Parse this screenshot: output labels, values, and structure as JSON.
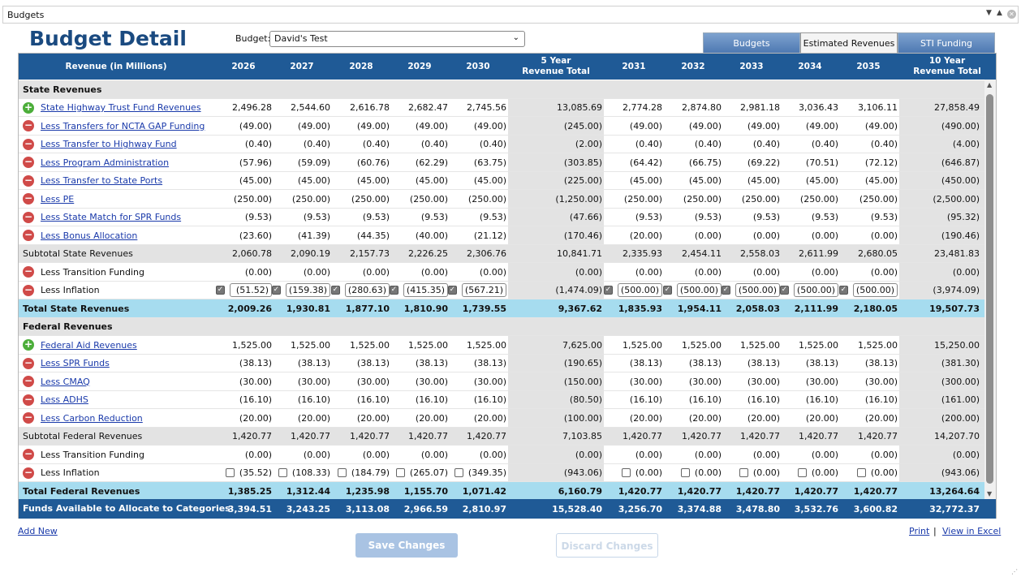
{
  "window": {
    "title": "Budgets"
  },
  "page": {
    "heading": "Budget Detail",
    "budget_label": "Budget:",
    "budget_value": "David's Test"
  },
  "tabs": [
    "Budgets",
    "Estimated Revenues",
    "STI Funding"
  ],
  "active_tab": 1,
  "header": {
    "first": "Revenue (in Millions)",
    "cols": [
      "2026",
      "2027",
      "2028",
      "2029",
      "2030",
      "5 Year\nRevenue Total",
      "2031",
      "2032",
      "2033",
      "2034",
      "2035",
      "10 Year\nRevenue Total"
    ]
  },
  "rows": [
    {
      "type": "section",
      "label": "State Revenues"
    },
    {
      "type": "item",
      "icon": "plus",
      "link": true,
      "label": "State Highway Trust Fund Revenues",
      "vals": [
        "2,496.28",
        "2,544.60",
        "2,616.78",
        "2,682.47",
        "2,745.56",
        "13,085.69",
        "2,774.28",
        "2,874.80",
        "2,981.18",
        "3,036.43",
        "3,106.11",
        "27,858.49"
      ]
    },
    {
      "type": "item",
      "icon": "minus",
      "link": true,
      "label": "Less Transfers for NCTA GAP Funding",
      "vals": [
        "(49.00)",
        "(49.00)",
        "(49.00)",
        "(49.00)",
        "(49.00)",
        "(245.00)",
        "(49.00)",
        "(49.00)",
        "(49.00)",
        "(49.00)",
        "(49.00)",
        "(490.00)"
      ]
    },
    {
      "type": "item",
      "icon": "minus",
      "link": true,
      "label": "Less Transfer to Highway Fund",
      "vals": [
        "(0.40)",
        "(0.40)",
        "(0.40)",
        "(0.40)",
        "(0.40)",
        "(2.00)",
        "(0.40)",
        "(0.40)",
        "(0.40)",
        "(0.40)",
        "(0.40)",
        "(4.00)"
      ]
    },
    {
      "type": "item",
      "icon": "minus",
      "link": true,
      "label": "Less Program Administration",
      "vals": [
        "(57.96)",
        "(59.09)",
        "(60.76)",
        "(62.29)",
        "(63.75)",
        "(303.85)",
        "(64.42)",
        "(66.75)",
        "(69.22)",
        "(70.51)",
        "(72.12)",
        "(646.87)"
      ]
    },
    {
      "type": "item",
      "icon": "minus",
      "link": true,
      "label": "Less Transfer to State Ports",
      "vals": [
        "(45.00)",
        "(45.00)",
        "(45.00)",
        "(45.00)",
        "(45.00)",
        "(225.00)",
        "(45.00)",
        "(45.00)",
        "(45.00)",
        "(45.00)",
        "(45.00)",
        "(450.00)"
      ]
    },
    {
      "type": "item",
      "icon": "minus",
      "link": true,
      "label": "Less PE",
      "vals": [
        "(250.00)",
        "(250.00)",
        "(250.00)",
        "(250.00)",
        "(250.00)",
        "(1,250.00)",
        "(250.00)",
        "(250.00)",
        "(250.00)",
        "(250.00)",
        "(250.00)",
        "(2,500.00)"
      ]
    },
    {
      "type": "item",
      "icon": "minus",
      "link": true,
      "label": "Less State Match for SPR Funds",
      "vals": [
        "(9.53)",
        "(9.53)",
        "(9.53)",
        "(9.53)",
        "(9.53)",
        "(47.66)",
        "(9.53)",
        "(9.53)",
        "(9.53)",
        "(9.53)",
        "(9.53)",
        "(95.32)"
      ]
    },
    {
      "type": "item",
      "icon": "minus",
      "link": true,
      "label": "Less Bonus Allocation",
      "vals": [
        "(23.60)",
        "(41.39)",
        "(44.35)",
        "(40.00)",
        "(21.12)",
        "(170.46)",
        "(20.00)",
        "(0.00)",
        "(0.00)",
        "(0.00)",
        "(0.00)",
        "(190.46)"
      ]
    },
    {
      "type": "subtotal",
      "label": "Subtotal State Revenues",
      "vals": [
        "2,060.78",
        "2,090.19",
        "2,157.73",
        "2,226.25",
        "2,306.76",
        "10,841.71",
        "2,335.93",
        "2,454.11",
        "2,558.03",
        "2,611.99",
        "2,680.05",
        "23,481.83"
      ]
    },
    {
      "type": "item",
      "icon": "minus",
      "link": false,
      "label": "Less Transition Funding",
      "vals": [
        "(0.00)",
        "(0.00)",
        "(0.00)",
        "(0.00)",
        "(0.00)",
        "(0.00)",
        "(0.00)",
        "(0.00)",
        "(0.00)",
        "(0.00)",
        "(0.00)",
        "(0.00)"
      ]
    },
    {
      "type": "inflation",
      "icon": "minus",
      "link": false,
      "checked": true,
      "label": "Less Inflation",
      "vals": [
        "(51.52)",
        "(159.38)",
        "(280.63)",
        "(415.35)",
        "(567.21)",
        "(1,474.09)",
        "(500.00)",
        "(500.00)",
        "(500.00)",
        "(500.00)",
        "(500.00)",
        "(3,974.09)"
      ]
    },
    {
      "type": "total",
      "label": "Total State Revenues",
      "vals": [
        "2,009.26",
        "1,930.81",
        "1,877.10",
        "1,810.90",
        "1,739.55",
        "9,367.62",
        "1,835.93",
        "1,954.11",
        "2,058.03",
        "2,111.99",
        "2,180.05",
        "19,507.73"
      ]
    },
    {
      "type": "section",
      "label": "Federal Revenues"
    },
    {
      "type": "item",
      "icon": "plus",
      "link": true,
      "label": "Federal Aid Revenues",
      "vals": [
        "1,525.00",
        "1,525.00",
        "1,525.00",
        "1,525.00",
        "1,525.00",
        "7,625.00",
        "1,525.00",
        "1,525.00",
        "1,525.00",
        "1,525.00",
        "1,525.00",
        "15,250.00"
      ]
    },
    {
      "type": "item",
      "icon": "minus",
      "link": true,
      "label": "Less SPR Funds",
      "vals": [
        "(38.13)",
        "(38.13)",
        "(38.13)",
        "(38.13)",
        "(38.13)",
        "(190.65)",
        "(38.13)",
        "(38.13)",
        "(38.13)",
        "(38.13)",
        "(38.13)",
        "(381.30)"
      ]
    },
    {
      "type": "item",
      "icon": "minus",
      "link": true,
      "label": "Less CMAQ",
      "vals": [
        "(30.00)",
        "(30.00)",
        "(30.00)",
        "(30.00)",
        "(30.00)",
        "(150.00)",
        "(30.00)",
        "(30.00)",
        "(30.00)",
        "(30.00)",
        "(30.00)",
        "(300.00)"
      ]
    },
    {
      "type": "item",
      "icon": "minus",
      "link": true,
      "label": "Less ADHS",
      "vals": [
        "(16.10)",
        "(16.10)",
        "(16.10)",
        "(16.10)",
        "(16.10)",
        "(80.50)",
        "(16.10)",
        "(16.10)",
        "(16.10)",
        "(16.10)",
        "(16.10)",
        "(161.00)"
      ]
    },
    {
      "type": "item",
      "icon": "minus",
      "link": true,
      "label": "Less Carbon Reduction",
      "vals": [
        "(20.00)",
        "(20.00)",
        "(20.00)",
        "(20.00)",
        "(20.00)",
        "(100.00)",
        "(20.00)",
        "(20.00)",
        "(20.00)",
        "(20.00)",
        "(20.00)",
        "(200.00)"
      ]
    },
    {
      "type": "subtotal",
      "label": "Subtotal Federal Revenues",
      "vals": [
        "1,420.77",
        "1,420.77",
        "1,420.77",
        "1,420.77",
        "1,420.77",
        "7,103.85",
        "1,420.77",
        "1,420.77",
        "1,420.77",
        "1,420.77",
        "1,420.77",
        "14,207.70"
      ]
    },
    {
      "type": "item",
      "icon": "minus",
      "link": false,
      "label": "Less Transition Funding",
      "vals": [
        "(0.00)",
        "(0.00)",
        "(0.00)",
        "(0.00)",
        "(0.00)",
        "(0.00)",
        "(0.00)",
        "(0.00)",
        "(0.00)",
        "(0.00)",
        "(0.00)",
        "(0.00)"
      ]
    },
    {
      "type": "inflation",
      "icon": "minus",
      "link": false,
      "checked": false,
      "label": "Less Inflation",
      "vals": [
        "(35.52)",
        "(108.33)",
        "(184.79)",
        "(265.07)",
        "(349.35)",
        "(943.06)",
        "(0.00)",
        "(0.00)",
        "(0.00)",
        "(0.00)",
        "(0.00)",
        "(943.06)"
      ]
    },
    {
      "type": "total",
      "label": "Total Federal Revenues",
      "vals": [
        "1,385.25",
        "1,312.44",
        "1,235.98",
        "1,155.70",
        "1,071.42",
        "6,160.79",
        "1,420.77",
        "1,420.77",
        "1,420.77",
        "1,420.77",
        "1,420.77",
        "13,264.64"
      ]
    }
  ],
  "footer_row": {
    "label": "Funds Available to Allocate to Categories",
    "vals": [
      "3,394.51",
      "3,243.25",
      "3,113.08",
      "2,966.59",
      "2,810.97",
      "15,528.40",
      "3,256.70",
      "3,374.88",
      "3,478.80",
      "3,532.76",
      "3,600.82",
      "32,772.37"
    ]
  },
  "actions": {
    "add_new": "Add New",
    "save": "Save Changes",
    "discard": "Discard Changes",
    "print": "Print",
    "separator": "|",
    "excel": "View in Excel"
  },
  "colors": {
    "header_bg": "#1f5a96",
    "heading": "#1a4a80",
    "total_bg": "#a6dcef",
    "section_bg": "#e3e3e3"
  }
}
